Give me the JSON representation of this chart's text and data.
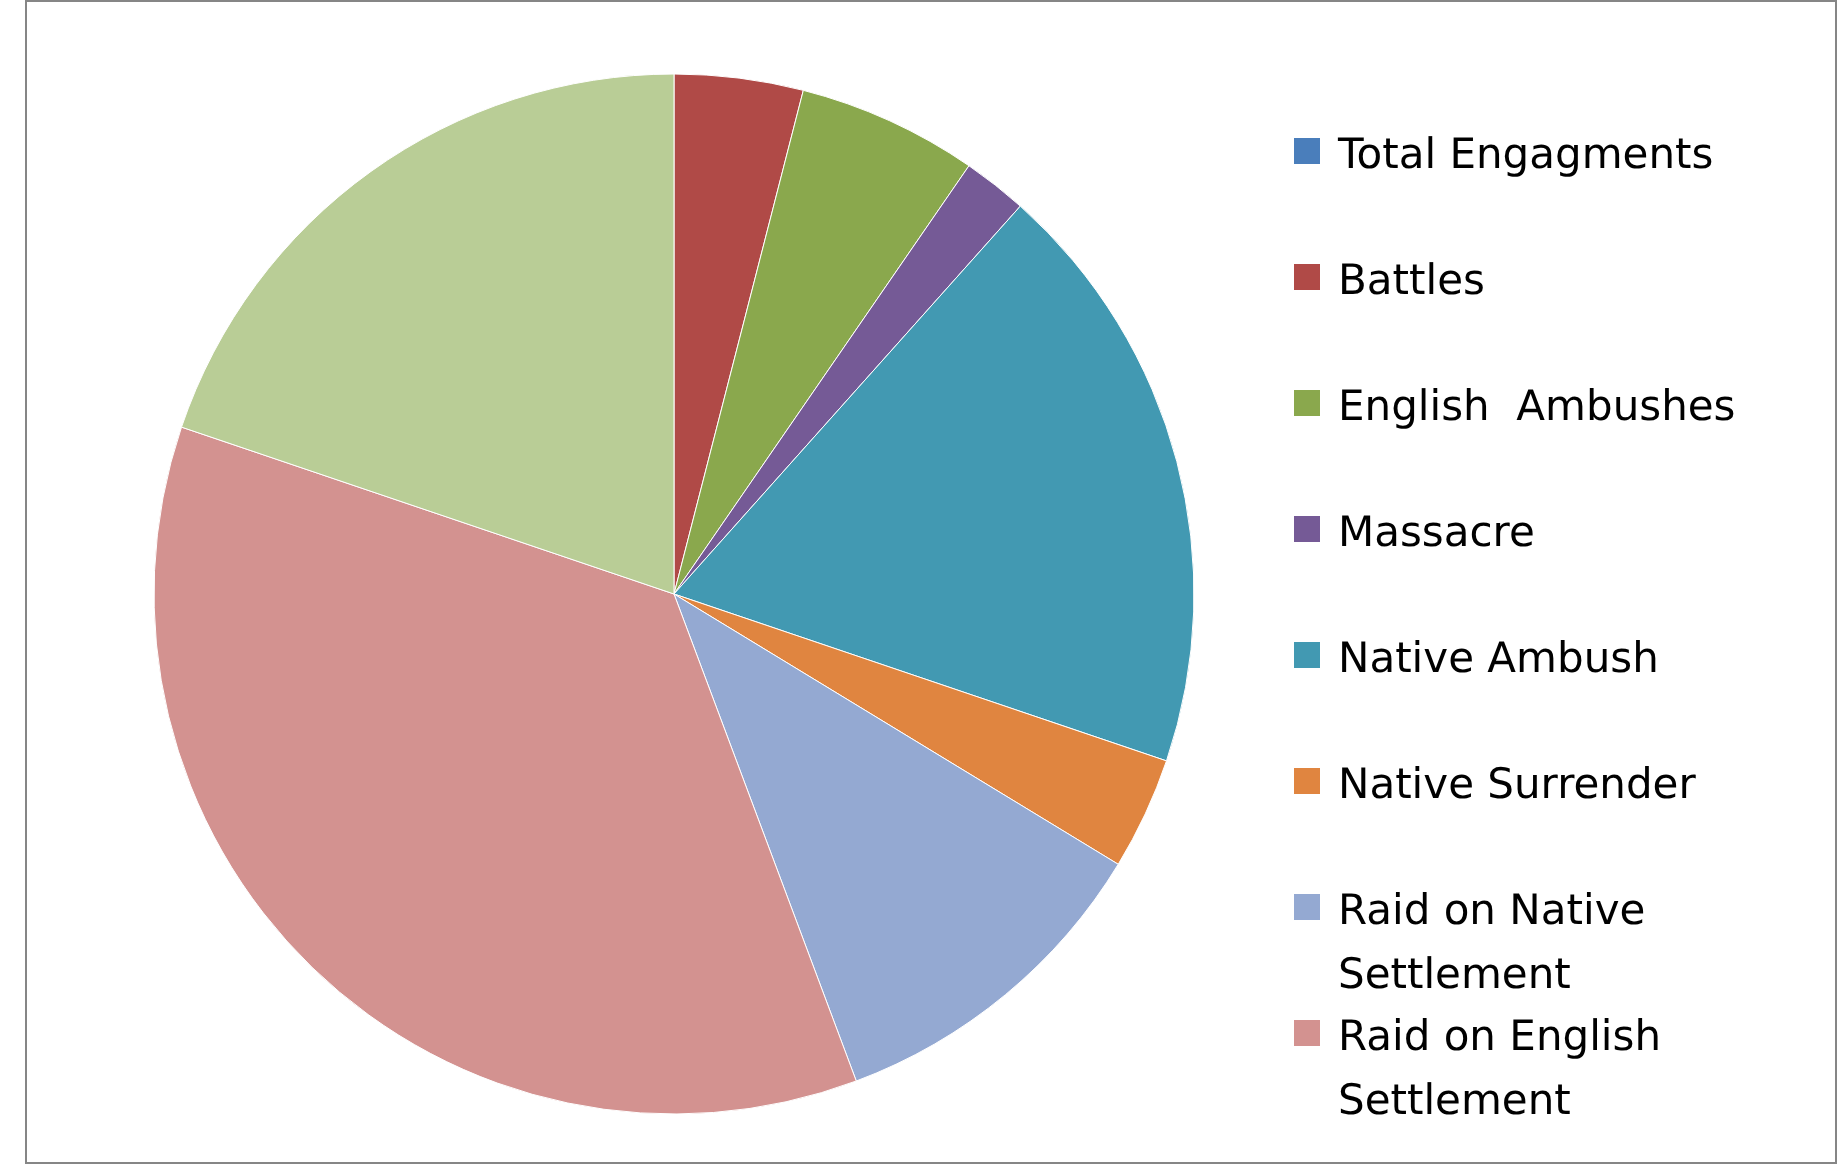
{
  "chart_data": {
    "type": "pie",
    "categories": [
      "Total Engagments",
      "Battles",
      "English  Ambushes",
      "Massacre",
      "Native Ambush",
      "Native Surrender",
      "Raid on Native Settlement",
      "Raid on English Settlement",
      null
    ],
    "values": [
      0,
      4,
      5.6,
      2,
      18.6,
      3.5,
      10.6,
      35.9,
      19.8
    ],
    "colors": [
      "#4a7ebb",
      "#b04a47",
      "#8aa84d",
      "#755a96",
      "#4299b2",
      "#e08540",
      "#94a9d2",
      "#d39290",
      "#b9cd96"
    ],
    "legend": "right"
  }
}
